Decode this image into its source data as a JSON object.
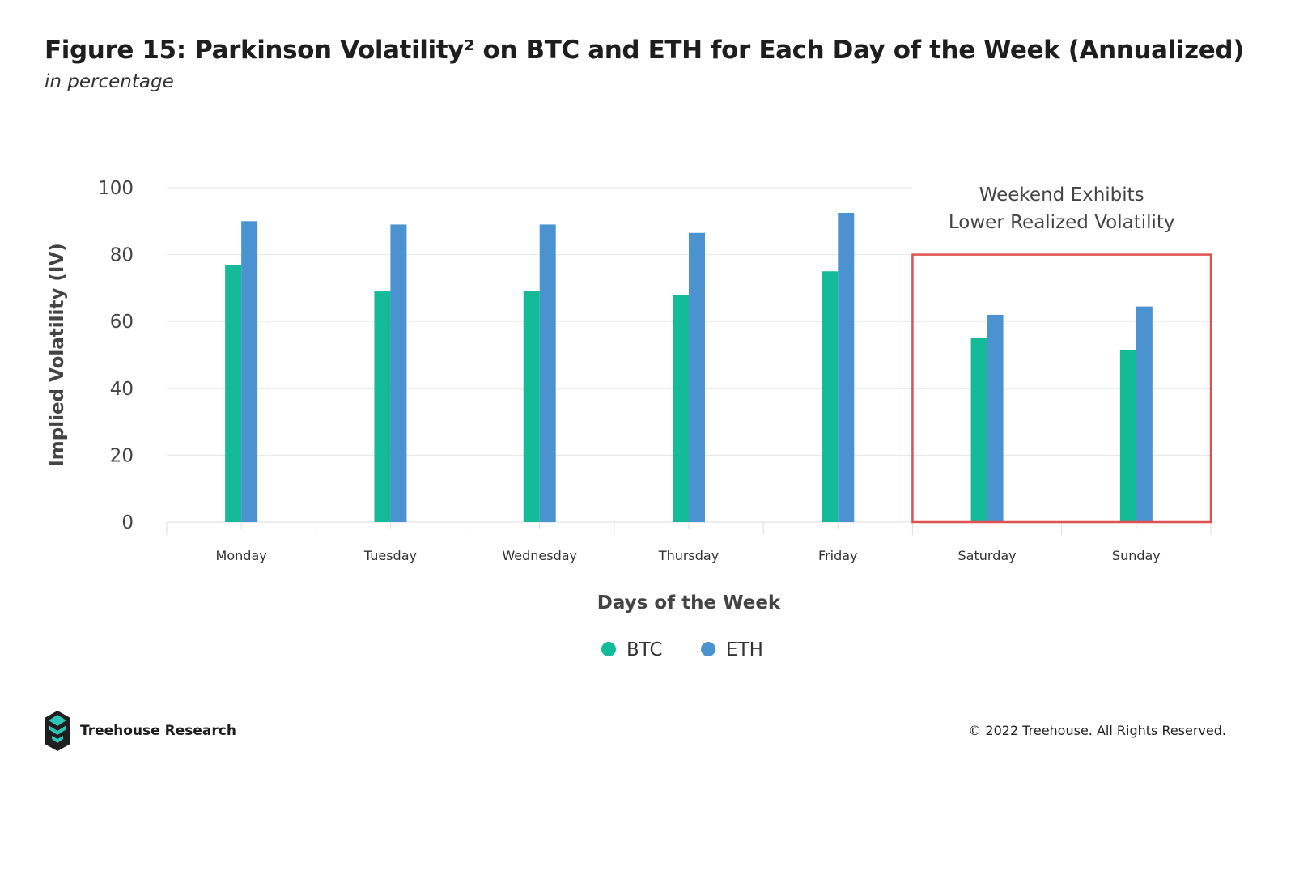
{
  "figure": {
    "title": "Figure 15: Parkinson Volatility² on BTC and ETH for Each Day of the Week (Annualized)",
    "subtitle": "in percentage"
  },
  "chart_data": {
    "type": "bar",
    "categories": [
      "Monday",
      "Tuesday",
      "Wednesday",
      "Thursday",
      "Friday",
      "Saturday",
      "Sunday"
    ],
    "series": [
      {
        "name": "BTC",
        "color": "#14bb99",
        "values": [
          77,
          69,
          69,
          68,
          75,
          55,
          51.5
        ]
      },
      {
        "name": "ETH",
        "color": "#4a93d0",
        "values": [
          90,
          89,
          89,
          86.5,
          92.5,
          62,
          64.5
        ]
      }
    ],
    "xlabel": "Days of the Week",
    "ylabel": "Implied Volatility (IV)",
    "ylim": [
      0,
      100
    ],
    "yticks": [
      0,
      20,
      40,
      60,
      80,
      100
    ],
    "grid": true,
    "legend": "bottom-center",
    "annotation": {
      "lines": [
        "Weekend Exhibits",
        "Lower Realized Volatility"
      ],
      "highlight_categories": [
        "Saturday",
        "Sunday"
      ],
      "highlight_range": [
        0,
        80
      ],
      "color": "#e05252"
    }
  },
  "footer": {
    "brand": "Treehouse Research",
    "copyright": "© 2022 Treehouse. All Rights Reserved."
  }
}
